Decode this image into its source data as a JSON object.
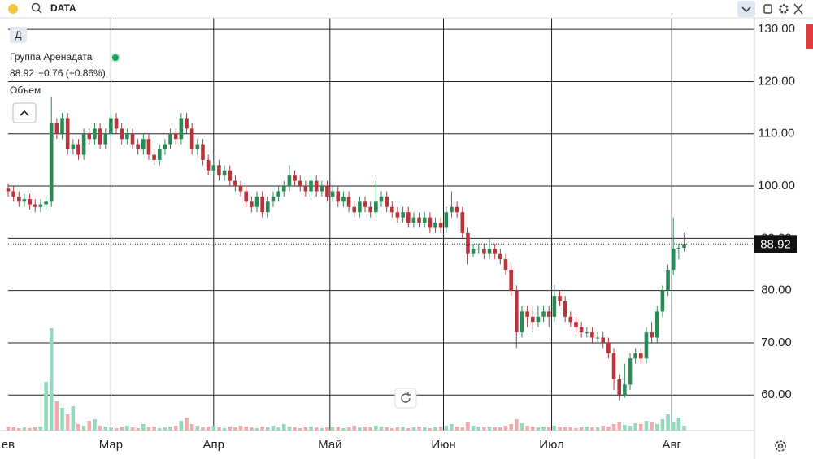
{
  "search": "DATA",
  "chart_data": {
    "type": "candlestick",
    "title": "Группа Аренадата",
    "symbol_button": "Д",
    "last_price_change": "+0.76 (+0.86%)",
    "volume_label": "Объем",
    "open": [
      99.5,
      99,
      98,
      97,
      97.5,
      96.5,
      96,
      96.5,
      97,
      112,
      110,
      113,
      107,
      108,
      106,
      110,
      109,
      111,
      108,
      110,
      113,
      111,
      109,
      110,
      108,
      107,
      109,
      106,
      105,
      107,
      108,
      110,
      109,
      113,
      111,
      107,
      108,
      105,
      103,
      104,
      102,
      103,
      101,
      100,
      99,
      97,
      96,
      98,
      95,
      97,
      98,
      99,
      100,
      102,
      101,
      100,
      99,
      101,
      99,
      100,
      98,
      99,
      97,
      98,
      96,
      95,
      97,
      96,
      95,
      97,
      98,
      96,
      95,
      94,
      95,
      93,
      94,
      93,
      94,
      92,
      93,
      92,
      95,
      96,
      95,
      91,
      87,
      88,
      88,
      87,
      88,
      87,
      86,
      84,
      80,
      72,
      76,
      75,
      74,
      75,
      76,
      75,
      79,
      78,
      75,
      74,
      73,
      72,
      72,
      71,
      71,
      70,
      68,
      63,
      60,
      62,
      67,
      68,
      67,
      72,
      71,
      76,
      80,
      84,
      88,
      88.2
    ],
    "high": [
      100.5,
      100,
      99,
      98.5,
      98.5,
      97.5,
      97.5,
      98,
      117,
      113,
      114,
      114,
      109,
      109,
      111,
      111,
      112,
      112,
      111,
      114,
      114,
      112,
      111,
      111,
      109,
      110,
      110,
      107,
      108,
      109,
      111,
      111,
      114,
      114,
      112,
      109,
      109,
      106,
      105,
      105,
      104,
      104,
      102,
      101,
      100,
      98,
      99,
      99,
      98,
      99,
      100,
      101,
      104,
      103,
      102,
      101,
      102,
      102,
      101,
      101,
      100,
      100,
      99,
      99,
      97,
      98,
      98,
      97,
      101,
      99,
      99,
      97,
      96,
      96,
      96,
      95,
      95,
      95,
      95,
      94,
      94,
      96,
      99,
      97,
      96,
      92,
      89,
      89,
      89,
      90,
      89,
      88,
      87,
      85,
      81,
      77,
      77,
      77,
      77,
      77,
      77,
      81,
      80,
      79,
      76,
      75,
      74,
      73,
      73,
      72,
      72,
      71,
      69,
      64,
      66,
      68,
      69,
      69,
      73,
      74,
      77,
      81,
      85,
      94,
      89,
      91
    ],
    "low": [
      98,
      97,
      96,
      96,
      95.5,
      95,
      95,
      95.5,
      96,
      109,
      109,
      106,
      106,
      105,
      105,
      108,
      108,
      107,
      107,
      109,
      110,
      108,
      108,
      107,
      106,
      106,
      105,
      104,
      104,
      106,
      107,
      108,
      108,
      110,
      106,
      106,
      104,
      102,
      102,
      101,
      101,
      100,
      99,
      98,
      96,
      95,
      95,
      94,
      94,
      96,
      97,
      98,
      99,
      100,
      99,
      98,
      98,
      98,
      98,
      97,
      97,
      96,
      96,
      95,
      94,
      94,
      95,
      94,
      94,
      96,
      95,
      94,
      93,
      93,
      92,
      92,
      92,
      92,
      91,
      91,
      91,
      91,
      94,
      94,
      90,
      85,
      86.5,
      87,
      86,
      86,
      86,
      85,
      83,
      79,
      69,
      71,
      73,
      72,
      73,
      74,
      73,
      74,
      77,
      74,
      73,
      72,
      71,
      71,
      70,
      70,
      69,
      67,
      61,
      59,
      59.5,
      61,
      66,
      66,
      66,
      70,
      70,
      75,
      79,
      83,
      86,
      87.5
    ],
    "close": [
      99,
      98,
      97,
      97.5,
      96.5,
      96,
      96.5,
      97,
      112,
      110,
      113,
      107,
      108,
      106,
      110,
      109,
      111,
      108,
      110,
      113,
      111,
      109,
      110,
      108,
      107,
      109,
      106,
      105,
      107,
      108,
      110,
      109,
      113,
      111,
      107,
      108,
      105,
      103,
      104,
      102,
      103,
      101,
      100,
      99,
      97,
      96,
      98,
      95,
      97,
      98,
      99,
      100,
      102,
      101,
      100,
      99,
      101,
      99,
      100,
      98,
      99,
      97,
      98,
      96,
      95,
      97,
      96,
      95,
      97,
      98,
      96,
      95,
      94,
      95,
      93,
      94,
      93,
      94,
      92,
      93,
      92,
      95,
      96,
      95,
      91,
      87,
      88,
      88,
      87,
      88,
      87,
      86,
      84,
      80,
      72,
      76,
      75,
      74,
      75,
      76,
      75,
      79,
      78,
      75,
      74,
      73,
      72,
      72,
      71,
      71,
      70,
      68,
      63,
      60,
      62,
      67,
      68,
      67,
      72,
      71,
      76,
      80,
      84,
      88,
      88.2,
      88.92
    ],
    "volume": [
      5,
      4,
      3,
      4,
      3,
      4,
      5,
      60,
      126,
      36,
      28,
      20,
      30,
      8,
      6,
      12,
      14,
      6,
      5,
      4,
      3,
      5,
      6,
      4,
      3,
      8,
      4,
      5,
      3,
      4,
      5,
      6,
      12,
      16,
      8,
      6,
      4,
      5,
      6,
      4,
      3,
      5,
      4,
      6,
      5,
      4,
      3,
      5,
      4,
      6,
      4,
      8,
      5,
      4,
      3,
      4,
      5,
      4,
      3,
      4,
      4,
      5,
      3,
      4,
      6,
      4,
      5,
      4,
      6,
      5,
      4,
      3,
      4,
      5,
      3,
      4,
      5,
      4,
      3,
      4,
      5,
      6,
      8,
      5,
      4,
      10,
      6,
      5,
      4,
      5,
      4,
      4,
      6,
      8,
      14,
      9,
      6,
      5,
      4,
      5,
      4,
      6,
      5,
      4,
      4,
      3,
      4,
      5,
      4,
      4,
      6,
      5,
      8,
      10,
      7,
      6,
      9,
      8,
      12,
      10,
      8,
      14,
      20,
      10,
      16,
      6
    ],
    "up_color": "#2a8a55",
    "down_color": "#b8333a",
    "volume_up_color": "#93d9bb",
    "volume_down_color": "#f4aaaa",
    "xlim": [
      0,
      138
    ],
    "xticks": [
      {
        "value": 0,
        "label": "ев"
      },
      {
        "value": 19,
        "label": "Мар"
      },
      {
        "value": 38,
        "label": "Апр"
      },
      {
        "value": 59.5,
        "label": "Май"
      },
      {
        "value": 80.5,
        "label": "Июн"
      },
      {
        "value": 100.5,
        "label": "Июл"
      },
      {
        "value": 122.7,
        "label": "Авг"
      }
    ],
    "ylim": [
      53.2,
      132.2
    ],
    "yticks": [
      {
        "value": 60,
        "label": "60.00"
      },
      {
        "value": 70,
        "label": "70.00"
      },
      {
        "value": 80,
        "label": "80.00"
      },
      {
        "value": 90,
        "label": "90.00"
      },
      {
        "value": 100,
        "label": "100.00"
      },
      {
        "value": 110,
        "label": "110.00"
      },
      {
        "value": 120,
        "label": "120.00"
      },
      {
        "value": 130,
        "label": "130.00"
      }
    ],
    "grid": true
  }
}
